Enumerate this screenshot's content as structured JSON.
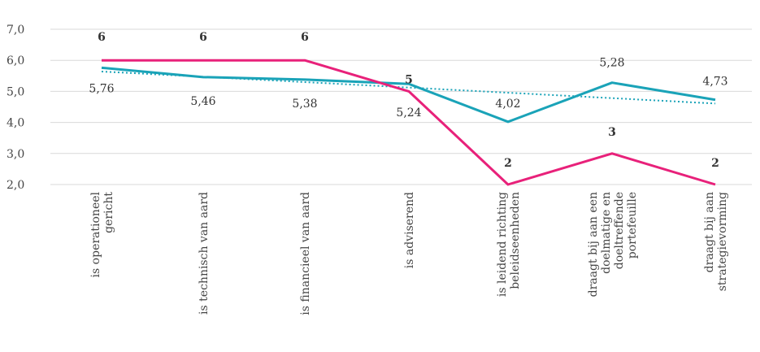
{
  "chart_data": {
    "type": "line",
    "categories": [
      [
        "is operationeel",
        "gericht"
      ],
      [
        "is technisch van aard"
      ],
      [
        "is financieel van aard"
      ],
      [
        "is adviserend"
      ],
      [
        "is leidend richting",
        "beleidseenheden"
      ],
      [
        "draagt bij aan een",
        "doelmatige en",
        "doeltreffende",
        "portefeuille"
      ],
      [
        "draagt bij aan",
        "strategievorming"
      ]
    ],
    "ylim": [
      2,
      7
    ],
    "yticks": [
      2,
      3,
      4,
      5,
      6,
      7
    ],
    "ytick_labels": [
      "2,0",
      "3,0",
      "4,0",
      "5,0",
      "6,0",
      "7,0"
    ],
    "grid": "horizontal",
    "series": [
      {
        "values": [
          6,
          6,
          6,
          5,
          2,
          3,
          2
        ],
        "labels": [
          "6",
          "6",
          "6",
          "5",
          "2",
          "3",
          "2"
        ],
        "color": "#e8217a"
      },
      {
        "values": [
          5.76,
          5.46,
          5.38,
          5.24,
          4.02,
          5.28,
          4.73
        ],
        "labels": [
          "5,76",
          "5,46",
          "5,38",
          "5,24",
          "4,02",
          "5,28",
          "4,73"
        ],
        "color": "#1aa3b8"
      }
    ],
    "trendline": {
      "of_series": 1,
      "style": "dotted",
      "color": "#1aa3b8"
    }
  }
}
